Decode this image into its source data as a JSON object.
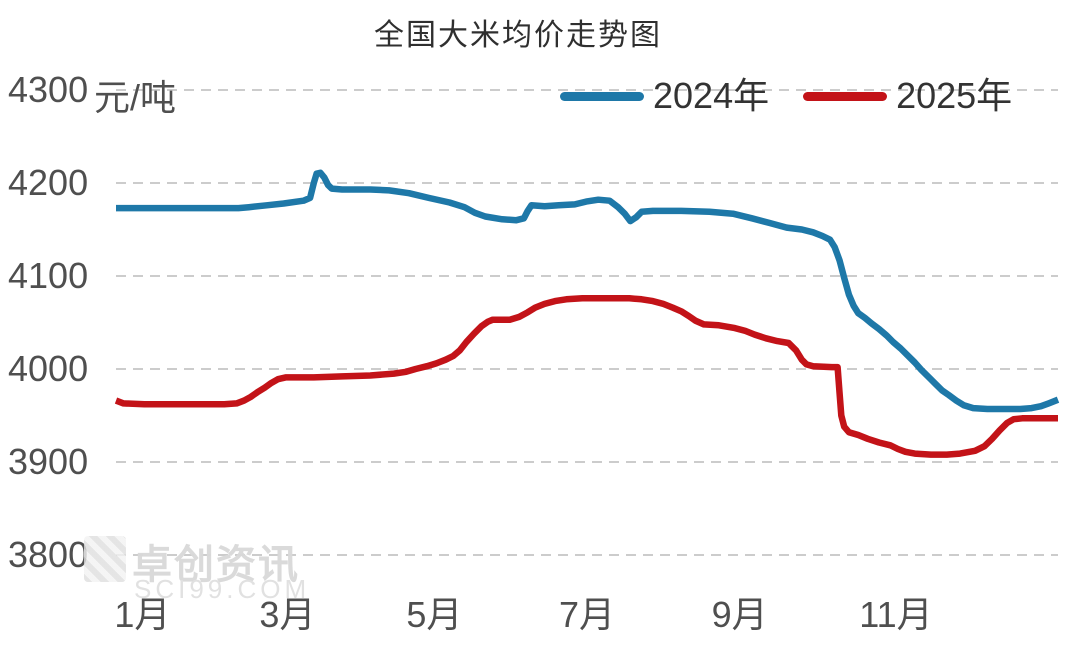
{
  "title": "全国大米均价走势图",
  "watermark": {
    "name": "卓创资讯",
    "site": "SCI99.COM"
  },
  "colors": {
    "series_2024": "#1E78A8",
    "series_2025": "#C31318",
    "grid": "#CCCCCC",
    "axis_text": "#4F4F4F",
    "title_text": "#2F2F2F"
  },
  "chart_data": {
    "type": "line",
    "title": "全国大米均价走势图",
    "ylabel_unit": "元/吨",
    "xlabel": "",
    "ylim": [
      3800,
      4300
    ],
    "yticks": [
      4300,
      4200,
      4100,
      4000,
      3900,
      3800
    ],
    "xticks": [
      {
        "label": "1月",
        "f": 0.028
      },
      {
        "label": "3月",
        "f": 0.182
      },
      {
        "label": "5月",
        "f": 0.338
      },
      {
        "label": "7月",
        "f": 0.5
      },
      {
        "label": "9月",
        "f": 0.662
      },
      {
        "label": "11月",
        "f": 0.828
      }
    ],
    "grid": "dashed-horizontal",
    "legend_position": "top-right",
    "series": [
      {
        "name": "2024年",
        "color": "#1E78A8",
        "points": [
          [
            0.0,
            4173
          ],
          [
            0.045,
            4173
          ],
          [
            0.09,
            4173
          ],
          [
            0.13,
            4173
          ],
          [
            0.141,
            4174
          ],
          [
            0.16,
            4176
          ],
          [
            0.178,
            4178
          ],
          [
            0.199,
            4181
          ],
          [
            0.206,
            4184
          ],
          [
            0.21,
            4200
          ],
          [
            0.213,
            4210
          ],
          [
            0.217,
            4211
          ],
          [
            0.221,
            4206
          ],
          [
            0.225,
            4198
          ],
          [
            0.229,
            4194
          ],
          [
            0.24,
            4193
          ],
          [
            0.27,
            4193
          ],
          [
            0.29,
            4192
          ],
          [
            0.311,
            4189
          ],
          [
            0.332,
            4184
          ],
          [
            0.354,
            4179
          ],
          [
            0.37,
            4174
          ],
          [
            0.381,
            4168
          ],
          [
            0.392,
            4164
          ],
          [
            0.41,
            4161
          ],
          [
            0.425,
            4160
          ],
          [
            0.433,
            4162
          ],
          [
            0.437,
            4170
          ],
          [
            0.441,
            4176
          ],
          [
            0.455,
            4175
          ],
          [
            0.47,
            4176
          ],
          [
            0.487,
            4177
          ],
          [
            0.499,
            4180
          ],
          [
            0.512,
            4182
          ],
          [
            0.524,
            4181
          ],
          [
            0.533,
            4174
          ],
          [
            0.54,
            4167
          ],
          [
            0.546,
            4159
          ],
          [
            0.552,
            4163
          ],
          [
            0.558,
            4169
          ],
          [
            0.57,
            4170
          ],
          [
            0.6,
            4170
          ],
          [
            0.63,
            4169
          ],
          [
            0.655,
            4167
          ],
          [
            0.675,
            4162
          ],
          [
            0.694,
            4157
          ],
          [
            0.712,
            4152
          ],
          [
            0.728,
            4150
          ],
          [
            0.74,
            4147
          ],
          [
            0.75,
            4143
          ],
          [
            0.758,
            4139
          ],
          [
            0.763,
            4131
          ],
          [
            0.768,
            4117
          ],
          [
            0.773,
            4098
          ],
          [
            0.778,
            4080
          ],
          [
            0.783,
            4068
          ],
          [
            0.788,
            4060
          ],
          [
            0.795,
            4055
          ],
          [
            0.802,
            4049
          ],
          [
            0.81,
            4043
          ],
          [
            0.818,
            4036
          ],
          [
            0.825,
            4029
          ],
          [
            0.833,
            4022
          ],
          [
            0.84,
            4015
          ],
          [
            0.848,
            4007
          ],
          [
            0.855,
            3999
          ],
          [
            0.862,
            3992
          ],
          [
            0.87,
            3984
          ],
          [
            0.877,
            3977
          ],
          [
            0.884,
            3972
          ],
          [
            0.892,
            3966
          ],
          [
            0.9,
            3961
          ],
          [
            0.91,
            3958
          ],
          [
            0.925,
            3957
          ],
          [
            0.945,
            3957
          ],
          [
            0.96,
            3957
          ],
          [
            0.972,
            3958
          ],
          [
            0.982,
            3960
          ],
          [
            0.99,
            3963
          ],
          [
            1.0,
            3967
          ]
        ]
      },
      {
        "name": "2025年",
        "color": "#C31318",
        "points": [
          [
            0.0,
            3966
          ],
          [
            0.008,
            3963
          ],
          [
            0.03,
            3962
          ],
          [
            0.06,
            3962
          ],
          [
            0.09,
            3962
          ],
          [
            0.115,
            3962
          ],
          [
            0.128,
            3963
          ],
          [
            0.136,
            3966
          ],
          [
            0.143,
            3970
          ],
          [
            0.15,
            3975
          ],
          [
            0.158,
            3980
          ],
          [
            0.165,
            3985
          ],
          [
            0.172,
            3989
          ],
          [
            0.18,
            3991
          ],
          [
            0.21,
            3991
          ],
          [
            0.24,
            3992
          ],
          [
            0.27,
            3993
          ],
          [
            0.295,
            3995
          ],
          [
            0.308,
            3997
          ],
          [
            0.318,
            4000
          ],
          [
            0.33,
            4003
          ],
          [
            0.34,
            4006
          ],
          [
            0.35,
            4010
          ],
          [
            0.358,
            4014
          ],
          [
            0.365,
            4020
          ],
          [
            0.372,
            4029
          ],
          [
            0.38,
            4038
          ],
          [
            0.388,
            4046
          ],
          [
            0.395,
            4051
          ],
          [
            0.4,
            4053
          ],
          [
            0.418,
            4053
          ],
          [
            0.428,
            4056
          ],
          [
            0.437,
            4061
          ],
          [
            0.445,
            4066
          ],
          [
            0.455,
            4070
          ],
          [
            0.466,
            4073
          ],
          [
            0.478,
            4075
          ],
          [
            0.495,
            4076
          ],
          [
            0.52,
            4076
          ],
          [
            0.545,
            4076
          ],
          [
            0.558,
            4075
          ],
          [
            0.57,
            4073
          ],
          [
            0.581,
            4070
          ],
          [
            0.591,
            4066
          ],
          [
            0.6,
            4062
          ],
          [
            0.608,
            4057
          ],
          [
            0.615,
            4052
          ],
          [
            0.624,
            4048
          ],
          [
            0.64,
            4047
          ],
          [
            0.657,
            4044
          ],
          [
            0.668,
            4041
          ],
          [
            0.678,
            4037
          ],
          [
            0.69,
            4033
          ],
          [
            0.702,
            4030
          ],
          [
            0.714,
            4028
          ],
          [
            0.722,
            4020
          ],
          [
            0.728,
            4010
          ],
          [
            0.733,
            4005
          ],
          [
            0.74,
            4003
          ],
          [
            0.76,
            4002
          ],
          [
            0.766,
            4002
          ],
          [
            0.768,
            3975
          ],
          [
            0.77,
            3950
          ],
          [
            0.773,
            3938
          ],
          [
            0.778,
            3932
          ],
          [
            0.788,
            3929
          ],
          [
            0.798,
            3925
          ],
          [
            0.81,
            3921
          ],
          [
            0.822,
            3918
          ],
          [
            0.83,
            3914
          ],
          [
            0.838,
            3911
          ],
          [
            0.848,
            3909
          ],
          [
            0.865,
            3908
          ],
          [
            0.882,
            3908
          ],
          [
            0.896,
            3909
          ],
          [
            0.912,
            3912
          ],
          [
            0.922,
            3917
          ],
          [
            0.93,
            3925
          ],
          [
            0.938,
            3934
          ],
          [
            0.946,
            3942
          ],
          [
            0.953,
            3946
          ],
          [
            0.962,
            3947
          ],
          [
            0.98,
            3947
          ],
          [
            1.0,
            3947
          ]
        ]
      }
    ]
  }
}
